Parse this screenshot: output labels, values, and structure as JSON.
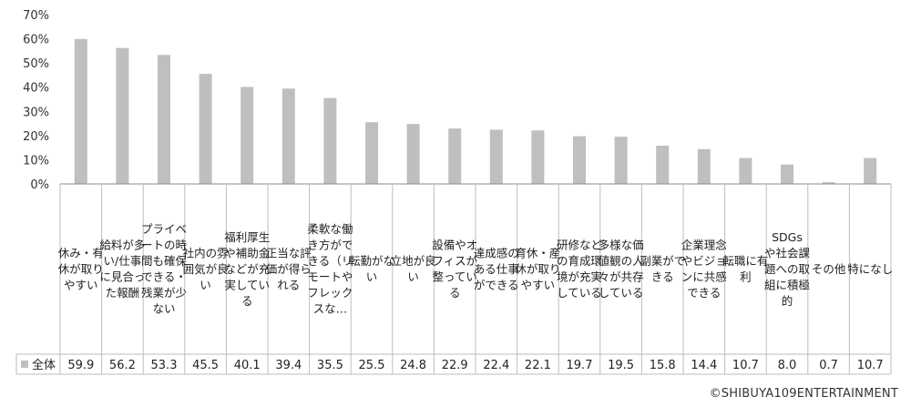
{
  "chart_data": {
    "type": "bar",
    "categories": [
      "休み・有休が取りやすい",
      "給料が多い/仕事に見合った報酬",
      "プライベートの時間も確保できる・残業が少ない",
      "社内の雰囲気が良い",
      "福利厚生や補助金などが充実している",
      "正当な評価が得られる",
      "柔軟な働き方ができる（リモートやフレックスな…",
      "転勤がない",
      "立地が良い",
      "設備やオフィスが整っている",
      "達成感のある仕事ができる",
      "育休・産休が取りやすい",
      "研修などの育成環境が充実している",
      "多様な価値観の人々が共存している",
      "副業ができる",
      "企業理念やビジョンに共感できる",
      "転職に有利",
      "SDGsや社会課題への取組に積極的",
      "その他",
      "特になし"
    ],
    "series": [
      {
        "name": "全体",
        "values": [
          59.9,
          56.2,
          53.3,
          45.5,
          40.1,
          39.4,
          35.5,
          25.5,
          24.8,
          22.9,
          22.4,
          22.1,
          19.7,
          19.5,
          15.8,
          14.4,
          10.7,
          8.0,
          0.7,
          10.7
        ],
        "value_labels": [
          "59.9",
          "56.2",
          "53.3",
          "45.5",
          "40.1",
          "39.4",
          "35.5",
          "25.5",
          "24.8",
          "22.9",
          "22.4",
          "22.1",
          "19.7",
          "19.5",
          "15.8",
          "14.4",
          "10.7",
          "8.0",
          "0.7",
          "10.7"
        ]
      }
    ],
    "yticks": [
      "0%",
      "10%",
      "20%",
      "30%",
      "40%",
      "50%",
      "60%",
      "70%"
    ],
    "ylim": [
      0,
      70
    ],
    "grid": false,
    "legend": "data-table-left",
    "bar_color": "#bfbfbf",
    "title": "",
    "xlabel": "",
    "ylabel": ""
  },
  "credit": "©SHIBUYA109ENTERTAINMENT"
}
